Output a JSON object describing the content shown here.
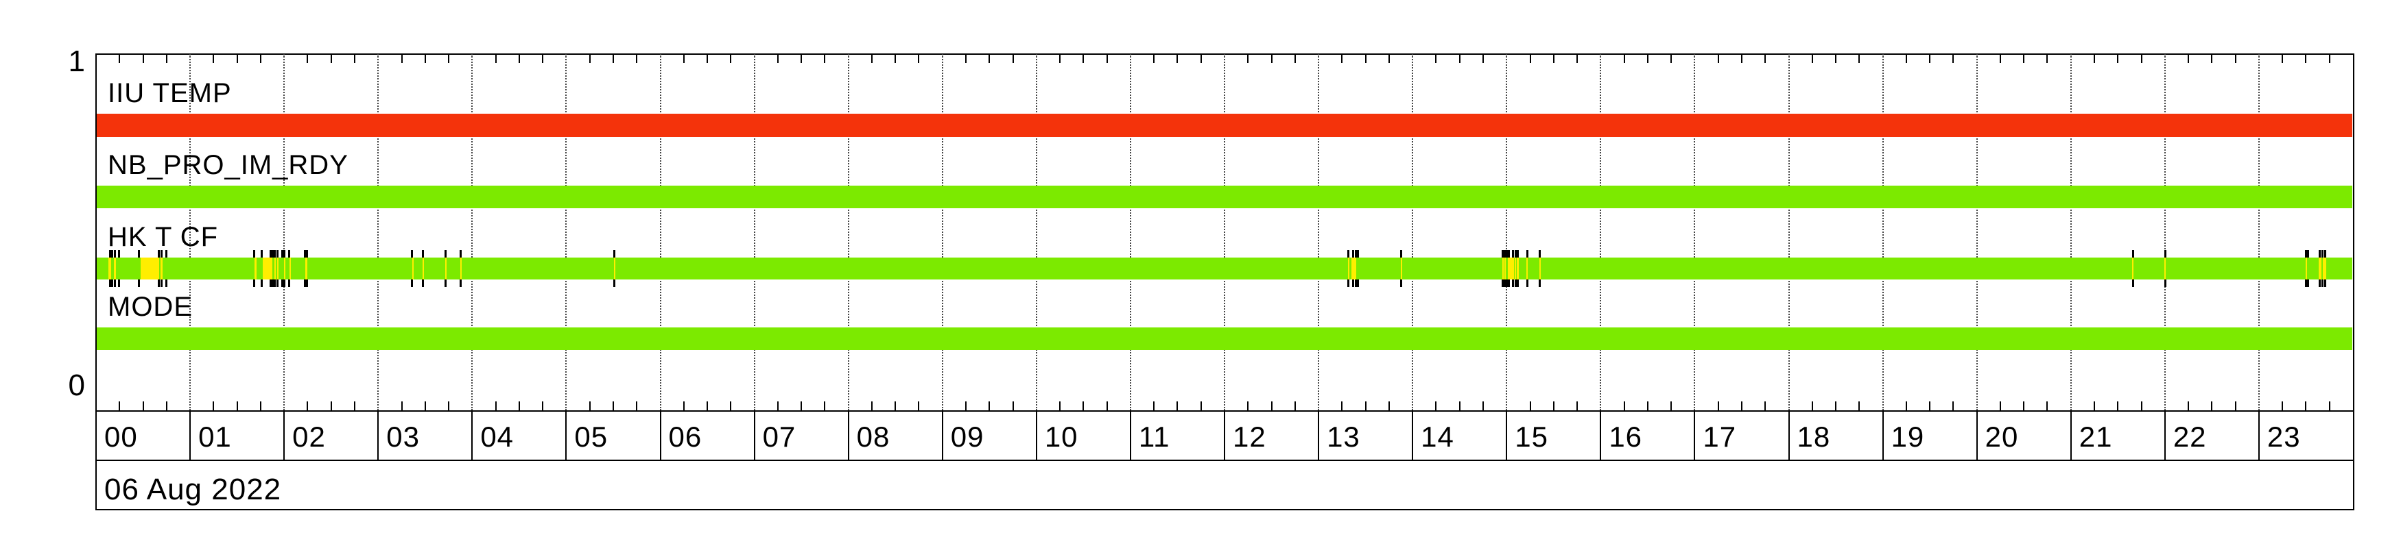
{
  "figure": {
    "kind": "instrument housekeeping status timeline",
    "date_label": "06 Aug 2022"
  },
  "axis": {
    "y_top_label": "1",
    "y_bottom_label": "0",
    "x_hour_labels": [
      "00",
      "01",
      "02",
      "03",
      "04",
      "05",
      "06",
      "07",
      "08",
      "09",
      "10",
      "11",
      "12",
      "13",
      "14",
      "15",
      "16",
      "17",
      "18",
      "19",
      "20",
      "21",
      "22",
      "23"
    ],
    "minor_tick_minutes": 15
  },
  "colors": {
    "alert_red": "#f4330b",
    "ok_green": "#7cea00",
    "event_yellow": "#ffee00",
    "grid_dotted": "#444444",
    "frame_black": "#000000"
  },
  "chart_data": {
    "type": "timeline",
    "title": "",
    "date": "06 Aug 2022",
    "x_unit": "hour of day",
    "xlim": [
      0,
      24
    ],
    "ylim": [
      0,
      1
    ],
    "grid": "dotted vertical lines at every hour, minor ticks every 15 minutes",
    "rows": [
      {
        "label": "IIU TEMP",
        "state_color": "alert_red",
        "span_hours": [
          0,
          24
        ],
        "event_ticks_hours": [],
        "yellow_segments_hours": []
      },
      {
        "label": "NB_PRO_IM_RDY",
        "state_color": "ok_green",
        "span_hours": [
          0,
          24
        ],
        "event_ticks_hours": [],
        "yellow_segments_hours": []
      },
      {
        "label": "HK T CF",
        "state_color": "ok_green",
        "span_hours": [
          0,
          24
        ],
        "event_ticks_hours": [
          0.146,
          0.168,
          0.197,
          0.241,
          0.459,
          0.671,
          0.7,
          0.751,
          1.685,
          1.765,
          1.86,
          1.882,
          1.903,
          1.933,
          1.984,
          2.006,
          2.057,
          2.224,
          2.246,
          3.362,
          3.478,
          3.719,
          3.879,
          5.513,
          13.317,
          13.368,
          13.397,
          13.419,
          13.879,
          14.958,
          14.98,
          15.002,
          15.024,
          15.067,
          15.097,
          15.118,
          15.221,
          15.352,
          21.659,
          22.002,
          23.497,
          23.519,
          23.643,
          23.672,
          23.708
        ],
        "yellow_segments_hours": [
          [
            0.131,
            0.16
          ],
          [
            0.19,
            0.212
          ],
          [
            0.474,
            0.671
          ],
          [
            0.686,
            0.707
          ],
          [
            1.685,
            1.707
          ],
          [
            1.772,
            1.874
          ],
          [
            1.896,
            1.911
          ],
          [
            1.925,
            1.94
          ],
          [
            1.998,
            2.013
          ],
          [
            2.057,
            2.071
          ],
          [
            2.224,
            2.246
          ],
          [
            3.362,
            3.377
          ],
          [
            3.471,
            3.486
          ],
          [
            3.712,
            3.726
          ],
          [
            3.872,
            3.887
          ],
          [
            5.506,
            5.521
          ],
          [
            13.31,
            13.324
          ],
          [
            13.346,
            13.404
          ],
          [
            13.872,
            13.886
          ],
          [
            14.951,
            14.965
          ],
          [
            14.973,
            14.987
          ],
          [
            15.016,
            15.075
          ],
          [
            15.089,
            15.104
          ],
          [
            15.111,
            15.126
          ],
          [
            15.213,
            15.228
          ],
          [
            15.345,
            15.359
          ],
          [
            21.651,
            21.666
          ],
          [
            21.994,
            22.009
          ],
          [
            23.497,
            23.512
          ],
          [
            23.636,
            23.665
          ],
          [
            23.679,
            23.716
          ]
        ]
      },
      {
        "label": "MODE",
        "state_color": "ok_green",
        "span_hours": [
          0,
          24
        ],
        "event_ticks_hours": [],
        "yellow_segments_hours": []
      }
    ]
  }
}
